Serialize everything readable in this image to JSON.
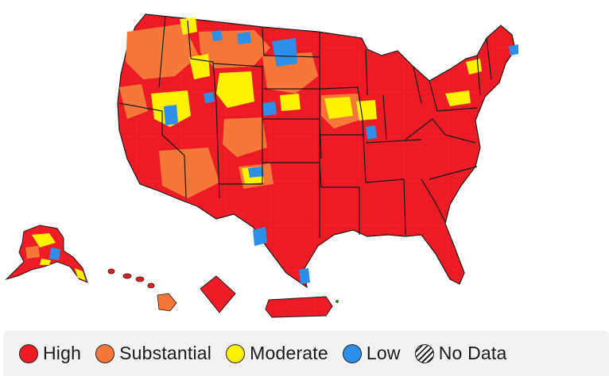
{
  "map": {
    "regions": [
      "contiguous-us",
      "alaska",
      "hawaii",
      "district-of-columbia-inset",
      "puerto-rico"
    ],
    "colors": {
      "high": "#ee1c25",
      "substantial": "#f5783a",
      "moderate": "#fff200",
      "low": "#2e8fe8",
      "border": "#1a1a1a"
    }
  },
  "legend": {
    "items": [
      {
        "key": "high",
        "label": "High",
        "color": "#ee1c25",
        "icon": "circle-swatch-icon"
      },
      {
        "key": "substantial",
        "label": "Substantial",
        "color": "#f5783a",
        "icon": "circle-swatch-icon"
      },
      {
        "key": "moderate",
        "label": "Moderate",
        "color": "#fff200",
        "icon": "circle-swatch-icon"
      },
      {
        "key": "low",
        "label": "Low",
        "color": "#2e8fe8",
        "icon": "circle-swatch-icon"
      },
      {
        "key": "nodata",
        "label": "No Data",
        "color": "hatched",
        "icon": "hatched-circle-icon"
      }
    ]
  }
}
